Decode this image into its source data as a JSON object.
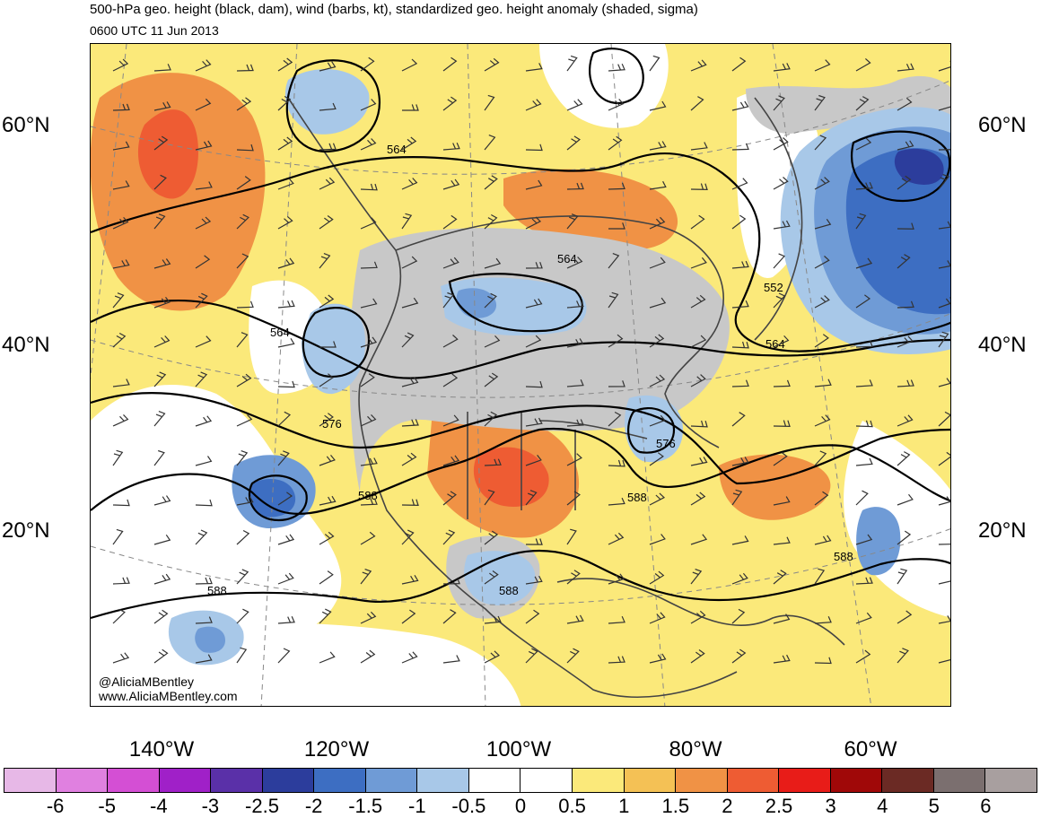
{
  "header": {
    "title": "500-hPa geo. height (black, dam), wind (barbs, kt), standardized geo. height anomaly (shaded, sigma)",
    "valid_time": "0600 UTC 11 Jun 2013"
  },
  "axes": {
    "lat_labels": [
      "60°N",
      "40°N",
      "20°N"
    ],
    "lon_labels": [
      "140°W",
      "120°W",
      "100°W",
      "80°W",
      "60°W"
    ]
  },
  "contour_labels": [
    "564",
    "564",
    "564",
    "552",
    "564",
    "576",
    "576",
    "588",
    "588",
    "588",
    "588",
    "588"
  ],
  "credits": {
    "handle": "@AliciaMBentley",
    "website": "www.AliciaMBentley.com"
  },
  "colorbar": {
    "labels": [
      "-6",
      "-5",
      "-4",
      "-3",
      "-2.5",
      "-2",
      "-1.5",
      "-1",
      "-0.5",
      "0",
      "0.5",
      "1",
      "1.5",
      "2",
      "2.5",
      "3",
      "4",
      "5",
      "6"
    ],
    "colors": [
      "#e7b8e7",
      "#e080e0",
      "#d44fd4",
      "#a020c8",
      "#5a30a8",
      "#2c3d9c",
      "#3d6ec2",
      "#6f9bd6",
      "#a8c8e8",
      "#ffffff",
      "#ffffff",
      "#fbe97a",
      "#f4c155",
      "#f09245",
      "#ee5c33",
      "#e81c18",
      "#a00808",
      "#6b2a24",
      "#7b6f6f",
      "#a89f9f"
    ]
  },
  "colors": {
    "positive_anomaly": "#f4c155",
    "strong_positive": "#f09245",
    "negative_anomaly": "#6f9bd6",
    "strong_negative": "#2c3d9c",
    "land_gray": "#c8c8c8",
    "contour": "#000000"
  }
}
